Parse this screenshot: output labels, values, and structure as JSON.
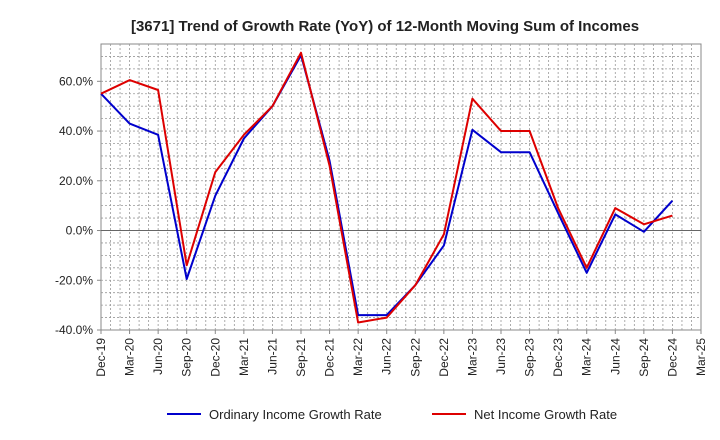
{
  "chart_data": {
    "type": "line",
    "title": "[3671]  Trend of Growth Rate (YoY) of 12-Month Moving Sum of Incomes",
    "xlabel": "",
    "ylabel": "",
    "x": [
      "Dec-19",
      "Mar-20",
      "Jun-20",
      "Sep-20",
      "Dec-20",
      "Mar-21",
      "Jun-21",
      "Sep-21",
      "Dec-21",
      "Mar-22",
      "Jun-22",
      "Sep-22",
      "Dec-22",
      "Mar-23",
      "Jun-23",
      "Sep-23",
      "Dec-23",
      "Mar-24",
      "Jun-24",
      "Sep-24",
      "Dec-24",
      "Mar-25"
    ],
    "ylim": [
      -40,
      75
    ],
    "yticks": [
      -40,
      -20,
      0,
      20,
      40,
      60
    ],
    "ytick_labels": [
      "-40.0%",
      "-20.0%",
      "0.0%",
      "20.0%",
      "40.0%",
      "60.0%"
    ],
    "grid": true,
    "legend_position": "bottom",
    "series": [
      {
        "name": "Ordinary Income Growth Rate",
        "color": "#0000cc",
        "values": [
          55,
          43,
          38.5,
          -19.5,
          14,
          37,
          50,
          70.5,
          28,
          -34,
          -34,
          -22,
          -6,
          40.5,
          31.5,
          31.5,
          7,
          -17,
          6.5,
          -0.5,
          12,
          null
        ]
      },
      {
        "name": "Net Income Growth Rate",
        "color": "#dd0000",
        "values": [
          55,
          60.5,
          56.5,
          -14,
          23.5,
          38.5,
          50,
          71.5,
          26,
          -37,
          -35,
          -22,
          -1.5,
          53,
          40,
          40,
          9,
          -15,
          9,
          2.5,
          6,
          null
        ]
      }
    ]
  }
}
